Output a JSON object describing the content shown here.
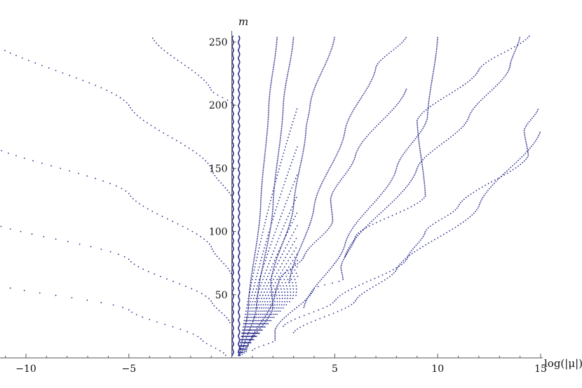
{
  "chart_data": {
    "type": "scatter",
    "title": "",
    "xlabel": "log(|μ|)",
    "ylabel": "m",
    "xlim": [
      -12.1,
      15
    ],
    "ylim": [
      0,
      258
    ],
    "grid": false,
    "legend": "none",
    "marker_color": "#2b2e8c",
    "x_ticks": [
      {
        "value": -10,
        "label": "−10"
      },
      {
        "value": -5,
        "label": "−5"
      },
      {
        "value": 5,
        "label": "5"
      },
      {
        "value": 10,
        "label": "10"
      },
      {
        "value": 15,
        "label": "15"
      }
    ],
    "y_ticks": [
      {
        "value": 50,
        "label": "50"
      },
      {
        "value": 100,
        "label": "100"
      },
      {
        "value": 150,
        "label": "150"
      },
      {
        "value": 200,
        "label": "200"
      },
      {
        "value": 250,
        "label": "250"
      }
    ],
    "left_branches": [
      {
        "points": [
          [
            -0.3,
            2
          ],
          [
            -1.5,
            15
          ],
          [
            -5,
            38
          ],
          [
            -12.1,
            61
          ]
        ]
      },
      {
        "points": [
          [
            -0.1,
            28
          ],
          [
            -1.0,
            45
          ],
          [
            -5,
            78
          ],
          [
            -12.1,
            110
          ]
        ]
      },
      {
        "points": [
          [
            0.0,
            65
          ],
          [
            -1.0,
            88
          ],
          [
            -5,
            130
          ],
          [
            -12.1,
            172
          ]
        ]
      },
      {
        "points": [
          [
            0.05,
            125
          ],
          [
            -1.0,
            150
          ],
          [
            -5,
            200
          ],
          [
            -12.1,
            255
          ]
        ]
      },
      {
        "points": [
          [
            0.1,
            200
          ],
          [
            -1.0,
            212
          ],
          [
            -3.9,
            255
          ]
        ]
      }
    ],
    "right_branches": [
      {
        "points": [
          [
            0.4,
            2
          ],
          [
            0.8,
            40
          ],
          [
            1.4,
            120
          ],
          [
            1.8,
            200
          ],
          [
            2.2,
            255
          ]
        ]
      },
      {
        "points": [
          [
            0.5,
            3
          ],
          [
            1.2,
            40
          ],
          [
            2.0,
            120
          ],
          [
            2.5,
            200
          ],
          [
            3.0,
            255
          ]
        ]
      },
      {
        "points": [
          [
            0.6,
            4
          ],
          [
            2.0,
            40
          ],
          [
            1.9,
            60
          ],
          [
            3.0,
            120
          ],
          [
            3.6,
            180
          ],
          [
            3.8,
            200
          ],
          [
            5.0,
            255
          ]
        ]
      },
      {
        "points": [
          [
            0.7,
            5
          ],
          [
            2.1,
            50
          ],
          [
            2.3,
            62
          ],
          [
            3.5,
            80
          ],
          [
            4.9,
            108
          ],
          [
            4.8,
            126
          ],
          [
            6.0,
            160
          ],
          [
            8.5,
            214
          ]
        ]
      },
      {
        "points": [
          [
            1.0,
            6
          ],
          [
            2.1,
            14
          ],
          [
            2.1,
            22
          ],
          [
            4.0,
            55
          ],
          [
            5.4,
            62
          ],
          [
            5.3,
            72
          ],
          [
            6.0,
            96
          ],
          [
            9.4,
            128
          ],
          [
            9.0,
            188
          ],
          [
            12.0,
            228
          ],
          [
            14.5,
            256
          ]
        ]
      },
      {
        "points": [
          [
            2.5,
            25
          ],
          [
            5.0,
            45
          ],
          [
            8.5,
            78
          ],
          [
            9.4,
            100
          ],
          [
            11.0,
            120
          ],
          [
            14.4,
            160
          ],
          [
            14.2,
            180
          ],
          [
            14.9,
            198
          ]
        ]
      },
      {
        "points": [
          [
            3.0,
            20
          ],
          [
            6.0,
            45
          ],
          [
            8.0,
            70
          ],
          [
            12.0,
            120
          ],
          [
            15.0,
            180
          ]
        ]
      },
      {
        "points": [
          [
            5.5,
            80
          ],
          [
            9.0,
            150
          ],
          [
            11.5,
            190
          ],
          [
            13.5,
            230
          ],
          [
            14.0,
            255
          ]
        ]
      },
      {
        "points": [
          [
            3.5,
            40
          ],
          [
            5.5,
            90
          ],
          [
            8.0,
            150
          ],
          [
            9.5,
            190
          ],
          [
            10.0,
            255
          ]
        ]
      },
      {
        "points": [
          [
            2.8,
            60
          ],
          [
            4.0,
            120
          ],
          [
            5.5,
            180
          ],
          [
            7.0,
            230
          ],
          [
            8.5,
            255
          ]
        ]
      }
    ],
    "dense_band": {
      "x_center": 0.2,
      "x_halfwidth": 0.15,
      "m_range": [
        2,
        255
      ],
      "fan_lines": 18
    }
  }
}
